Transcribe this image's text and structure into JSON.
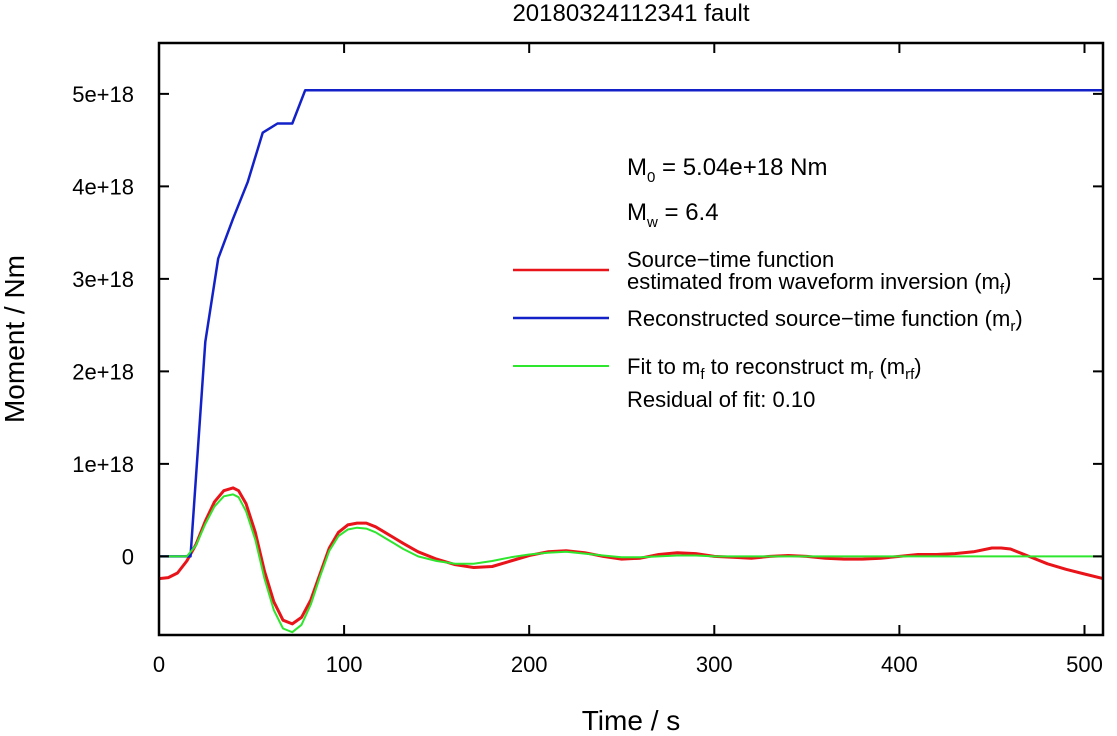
{
  "chart_data": {
    "type": "line",
    "title": "20180324112341 fault",
    "xlabel": "Time / s",
    "ylabel": "Moment / Nm",
    "xlim": [
      0,
      510
    ],
    "ylim": [
      -8.5e+17,
      5.55e+18
    ],
    "x_ticks": [
      0,
      100,
      200,
      300,
      400,
      500
    ],
    "x_tick_labels": [
      "0",
      "100",
      "200",
      "300",
      "400",
      "500"
    ],
    "y_ticks": [
      0,
      1e+18,
      2e+18,
      3e+18,
      4e+18,
      5e+18
    ],
    "y_tick_labels": [
      "0",
      "1e+18",
      "2e+18",
      "3e+18",
      "4e+18",
      "5e+18"
    ],
    "grid": false,
    "legend_position": "right",
    "annotations": {
      "m0_main": "M",
      "m0_sub": "0",
      "m0_rest": " = 5.04e+18 Nm",
      "mw_main": "M",
      "mw_sub": "w",
      "mw_rest": " = 6.4",
      "residual": "Residual of fit: 0.10"
    },
    "legend": {
      "red_line1": "Source−time function",
      "red_line2": "estimated from waveform inversion (m",
      "red_line2_sub": "f",
      "red_line2_end": ")",
      "blue_text": "Reconstructed source−time function (m",
      "blue_sub": "r",
      "blue_end": ")",
      "green_a": "Fit to m",
      "green_a_sub": "f",
      "green_b": " to reconstruct m",
      "green_b_sub": "r",
      "green_c": " (m",
      "green_c_sub": "rf",
      "green_d": ")"
    },
    "series": [
      {
        "name": "Source−time function estimated from waveform inversion (mf)",
        "color": "#e8141a",
        "x": [
          0,
          5,
          10,
          15,
          20,
          25,
          30,
          35,
          40,
          43,
          47,
          52,
          57,
          62,
          67,
          72,
          77,
          82,
          87,
          92,
          97,
          102,
          107,
          112,
          117,
          122,
          127,
          132,
          140,
          150,
          160,
          170,
          180,
          190,
          200,
          210,
          220,
          230,
          240,
          250,
          260,
          270,
          280,
          290,
          300,
          310,
          320,
          330,
          340,
          350,
          360,
          370,
          380,
          390,
          400,
          410,
          420,
          430,
          440,
          450,
          455,
          460,
          470,
          480,
          490,
          500,
          510
        ],
        "y": [
          -2.4e+17,
          -2.3e+17,
          -1.8e+17,
          -5e+16,
          1.3e+17,
          3.8e+17,
          5.9e+17,
          7.1e+17,
          7.4e+17,
          7.1e+17,
          5.7e+17,
          2.6e+17,
          -1.6e+17,
          -4.9e+17,
          -6.9e+17,
          -7.3e+17,
          -6.6e+17,
          -4.7e+17,
          -1.9e+17,
          9e+16,
          2.6e+17,
          3.4e+17,
          3.6e+17,
          3.6e+17,
          3.2e+17,
          2.6e+17,
          2e+17,
          1.4e+17,
          5e+16,
          -3e+16,
          -9e+16,
          -1.2e+17,
          -1.1e+17,
          -5e+16,
          1e+16,
          5e+16,
          6e+16,
          4e+16,
          0,
          -3e+16,
          -2e+16,
          2e+16,
          4e+16,
          3e+16,
          0,
          -1e+16,
          -2e+16,
          0,
          1e+16,
          0,
          -2e+16,
          -3e+16,
          -3e+16,
          -2e+16,
          0,
          2e+16,
          2e+16,
          3e+16,
          5e+16,
          9e+16,
          9e+16,
          8e+16,
          0,
          -8e+16,
          -1.4e+17,
          -1.9e+17,
          -2.4e+17
        ]
      },
      {
        "name": "Reconstructed source−time function (mr)",
        "color": "#1322c8",
        "x": [
          0,
          15,
          17,
          25,
          32,
          40,
          48,
          56,
          64,
          72,
          79,
          82,
          510
        ],
        "y": [
          0,
          0,
          0,
          2.32e+18,
          3.22e+18,
          3.65e+18,
          4.05e+18,
          4.58e+18,
          4.68e+18,
          4.68e+18,
          5.04e+18,
          5.04e+18,
          5.04e+18
        ]
      },
      {
        "name": "Fit to mf to reconstruct mr (mrf)",
        "color": "#2ee62e",
        "x": [
          0,
          15,
          20,
          25,
          30,
          35,
          40,
          43,
          47,
          52,
          57,
          62,
          67,
          72,
          77,
          82,
          87,
          92,
          97,
          102,
          107,
          112,
          117,
          122,
          127,
          132,
          140,
          150,
          160,
          170,
          180,
          190,
          200,
          210,
          220,
          230,
          240,
          250,
          260,
          270,
          280,
          290,
          300,
          320,
          340,
          360,
          380,
          400,
          420,
          440,
          460,
          480,
          510
        ],
        "y": [
          0,
          0,
          1.2e+17,
          3.5e+17,
          5.4e+17,
          6.5e+17,
          6.7e+17,
          6.4e+17,
          4.9e+17,
          1.8e+17,
          -2.4e+17,
          -5.8e+17,
          -7.8e+17,
          -8.2e+17,
          -7.4e+17,
          -5.2e+17,
          -2.2e+17,
          6e+16,
          2.2e+17,
          2.9e+17,
          3.1e+17,
          3e+17,
          2.6e+17,
          2e+17,
          1.4e+17,
          8e+16,
          0,
          -5e+16,
          -8e+16,
          -8e+16,
          -5e+16,
          -1e+16,
          2e+16,
          4e+16,
          5e+16,
          3e+16,
          1e+16,
          -1e+16,
          -1e+16,
          0,
          1e+16,
          1e+16,
          0,
          0,
          0,
          0,
          0,
          0,
          0,
          0,
          0,
          0,
          0
        ]
      }
    ]
  }
}
